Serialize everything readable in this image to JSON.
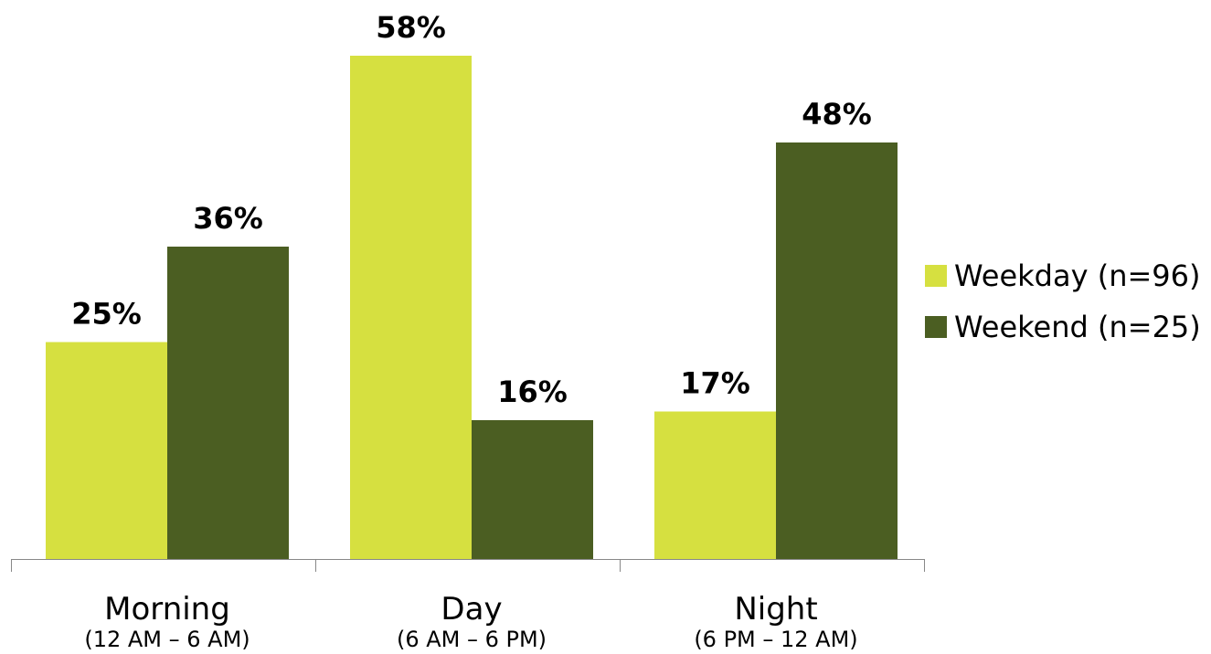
{
  "chart_data": {
    "type": "bar",
    "categories": [
      "Morning",
      "Day",
      "Night"
    ],
    "category_sublabels": [
      "(12 AM – 6 AM)",
      "(6 AM – 6 PM)",
      "(6 PM – 12 AM)"
    ],
    "series": [
      {
        "name": "Weekday (n=96)",
        "values": [
          25,
          58,
          17
        ],
        "labels": [
          "25%",
          "58%",
          "17%"
        ],
        "color": "#d6e040"
      },
      {
        "name": "Weekend (n=25)",
        "values": [
          36,
          16,
          48
        ],
        "labels": [
          "36%",
          "16%",
          "48%"
        ],
        "color": "#4b5e22"
      }
    ],
    "ylim": [
      0,
      60
    ],
    "unit": "%",
    "grid": false,
    "legend_position": "right"
  }
}
